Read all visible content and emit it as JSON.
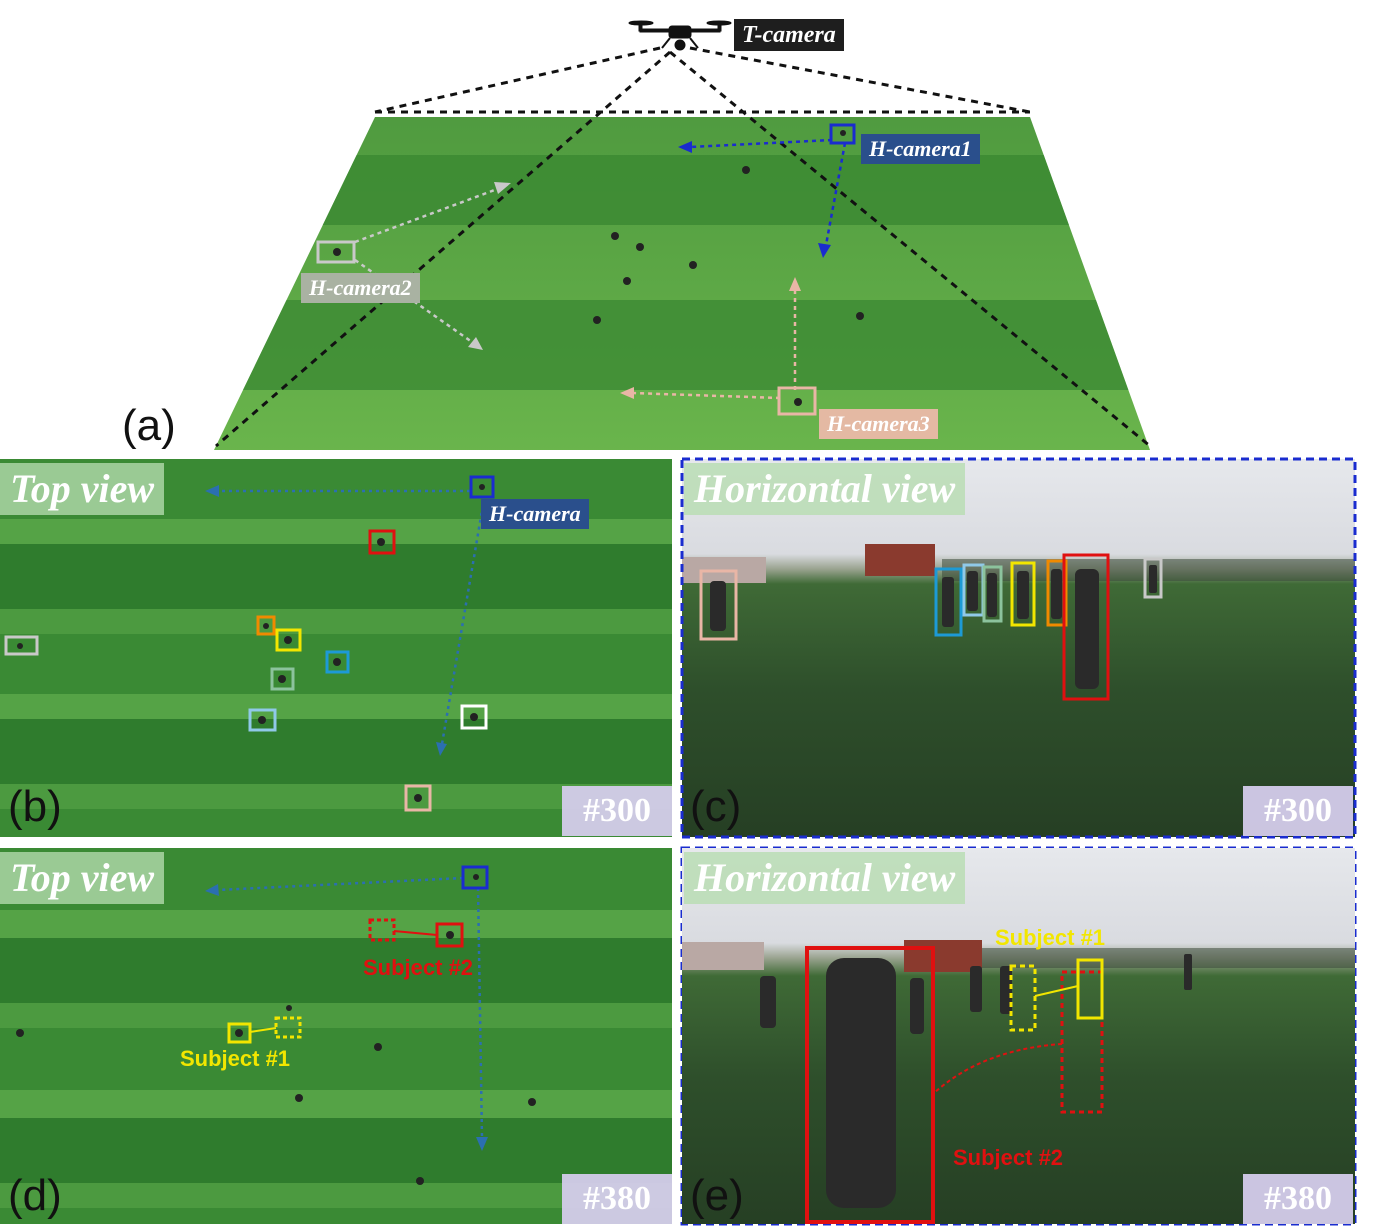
{
  "panel_a": {
    "label": "(a)",
    "t_camera": "T-camera",
    "h_camera1": "H-camera1",
    "h_camera2": "H-camera2",
    "h_camera3": "H-camera3"
  },
  "panel_b": {
    "label": "(b)",
    "view": "Top view",
    "h_camera": "H-camera",
    "frame": "#300"
  },
  "panel_c": {
    "label": "(c)",
    "view": "Horizontal view",
    "frame": "#300"
  },
  "panel_d": {
    "label": "(d)",
    "view": "Top view",
    "frame": "#380",
    "subject1": "Subject #1",
    "subject2": "Subject #2"
  },
  "panel_e": {
    "label": "(e)",
    "view": "Horizontal view",
    "frame": "#380",
    "subject1": "Subject #1",
    "subject2": "Subject #2"
  },
  "colors": {
    "h_camera1": "#1a2ccf",
    "h_camera2": "#c9c9c9",
    "h_camera3": "#e9b6a6",
    "subject1": "#f2e600",
    "subject2": "#e01010",
    "frame_badge": "#d4ccea",
    "view_badge": "#b6dcaf",
    "grass_dark": "#2f7a2c",
    "grass_light": "#5fa84a"
  }
}
